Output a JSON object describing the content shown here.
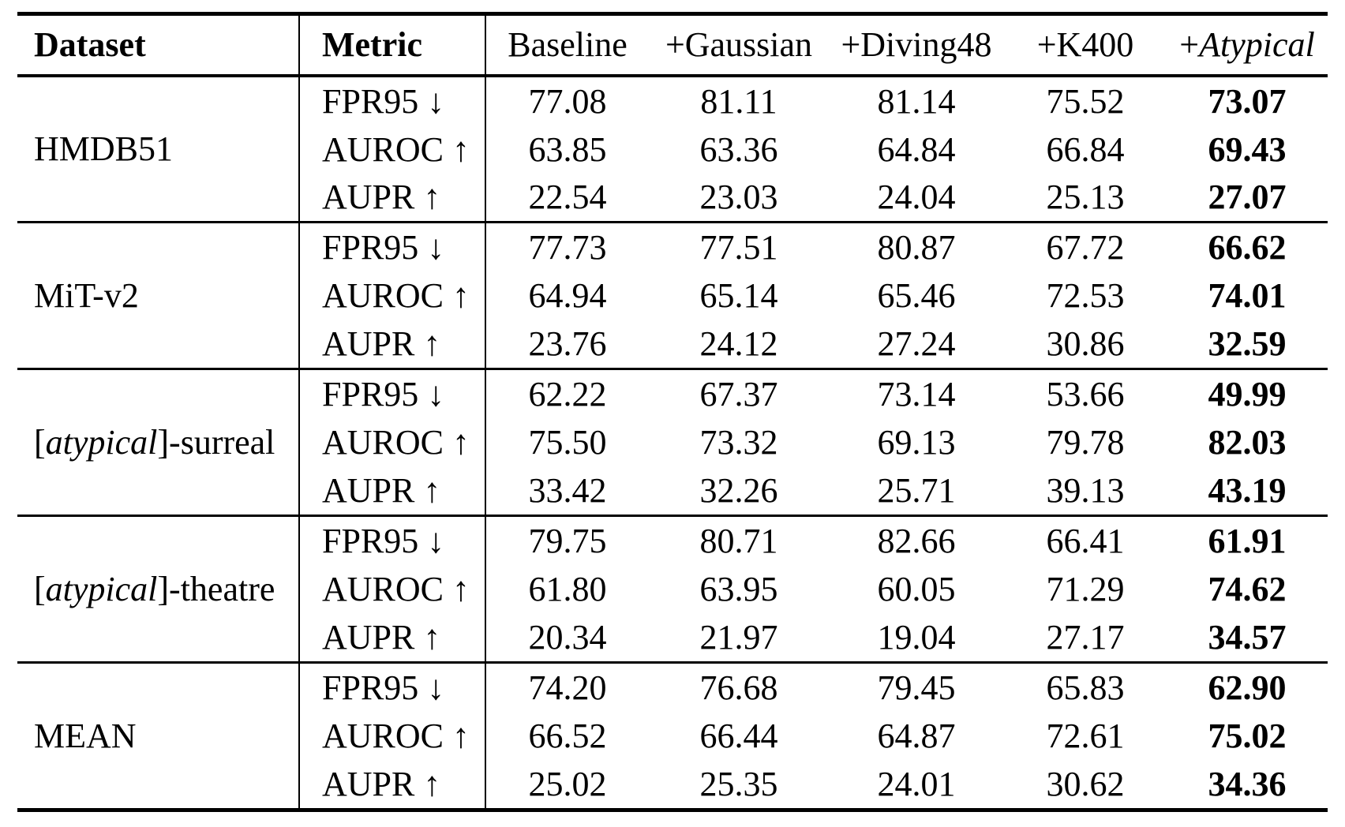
{
  "table": {
    "header": {
      "dataset_label": "Dataset",
      "metric_label": "Metric",
      "methods": [
        {
          "pre": "Baseline",
          "italic": "",
          "post": ""
        },
        {
          "pre": "+Gaussian",
          "italic": "",
          "post": ""
        },
        {
          "pre": "+Diving48",
          "italic": "",
          "post": ""
        },
        {
          "pre": "+K400",
          "italic": "",
          "post": ""
        },
        {
          "pre": "+",
          "italic": "Atypical",
          "post": ""
        }
      ]
    },
    "groups": [
      {
        "dataset": {
          "pre": "HMDB51",
          "italic": "",
          "post": ""
        },
        "rows": [
          {
            "metric": "FPR95 ↓",
            "values": [
              "77.08",
              "81.11",
              "81.14",
              "75.52",
              "73.07"
            ]
          },
          {
            "metric": "AUROC ↑",
            "values": [
              "63.85",
              "63.36",
              "64.84",
              "66.84",
              "69.43"
            ]
          },
          {
            "metric": "AUPR ↑",
            "values": [
              "22.54",
              "23.03",
              "24.04",
              "25.13",
              "27.07"
            ]
          }
        ]
      },
      {
        "dataset": {
          "pre": "MiT-v2",
          "italic": "",
          "post": ""
        },
        "rows": [
          {
            "metric": "FPR95 ↓",
            "values": [
              "77.73",
              "77.51",
              "80.87",
              "67.72",
              "66.62"
            ]
          },
          {
            "metric": "AUROC ↑",
            "values": [
              "64.94",
              "65.14",
              "65.46",
              "72.53",
              "74.01"
            ]
          },
          {
            "metric": "AUPR ↑",
            "values": [
              "23.76",
              "24.12",
              "27.24",
              "30.86",
              "32.59"
            ]
          }
        ]
      },
      {
        "dataset": {
          "pre": "[",
          "italic": "atypical",
          "post": "]-surreal"
        },
        "rows": [
          {
            "metric": "FPR95 ↓",
            "values": [
              "62.22",
              "67.37",
              "73.14",
              "53.66",
              "49.99"
            ]
          },
          {
            "metric": "AUROC ↑",
            "values": [
              "75.50",
              "73.32",
              "69.13",
              "79.78",
              "82.03"
            ]
          },
          {
            "metric": "AUPR ↑",
            "values": [
              "33.42",
              "32.26",
              "25.71",
              "39.13",
              "43.19"
            ]
          }
        ]
      },
      {
        "dataset": {
          "pre": "[",
          "italic": "atypical",
          "post": "]-theatre"
        },
        "rows": [
          {
            "metric": "FPR95 ↓",
            "values": [
              "79.75",
              "80.71",
              "82.66",
              "66.41",
              "61.91"
            ]
          },
          {
            "metric": "AUROC ↑",
            "values": [
              "61.80",
              "63.95",
              "60.05",
              "71.29",
              "74.62"
            ]
          },
          {
            "metric": "AUPR ↑",
            "values": [
              "20.34",
              "21.97",
              "19.04",
              "27.17",
              "34.57"
            ]
          }
        ]
      },
      {
        "dataset": {
          "pre": "MEAN",
          "italic": "",
          "post": ""
        },
        "rows": [
          {
            "metric": "FPR95 ↓",
            "values": [
              "74.20",
              "76.68",
              "79.45",
              "65.83",
              "62.90"
            ]
          },
          {
            "metric": "AUROC ↑",
            "values": [
              "66.52",
              "66.44",
              "64.87",
              "72.61",
              "75.02"
            ]
          },
          {
            "metric": "AUPR ↑",
            "values": [
              "25.02",
              "25.35",
              "24.01",
              "30.62",
              "34.36"
            ]
          }
        ]
      }
    ]
  },
  "chart_data": {
    "type": "table",
    "columns": [
      "Dataset",
      "Metric",
      "Baseline",
      "+Gaussian",
      "+Diving48",
      "+K400",
      "+Atypical"
    ],
    "rows": [
      [
        "HMDB51",
        "FPR95 ↓",
        77.08,
        81.11,
        81.14,
        75.52,
        73.07
      ],
      [
        "HMDB51",
        "AUROC ↑",
        63.85,
        63.36,
        64.84,
        66.84,
        69.43
      ],
      [
        "HMDB51",
        "AUPR ↑",
        22.54,
        23.03,
        24.04,
        25.13,
        27.07
      ],
      [
        "MiT-v2",
        "FPR95 ↓",
        77.73,
        77.51,
        80.87,
        67.72,
        66.62
      ],
      [
        "MiT-v2",
        "AUROC ↑",
        64.94,
        65.14,
        65.46,
        72.53,
        74.01
      ],
      [
        "MiT-v2",
        "AUPR ↑",
        23.76,
        24.12,
        27.24,
        30.86,
        32.59
      ],
      [
        "[atypical]-surreal",
        "FPR95 ↓",
        62.22,
        67.37,
        73.14,
        53.66,
        49.99
      ],
      [
        "[atypical]-surreal",
        "AUROC ↑",
        75.5,
        73.32,
        69.13,
        79.78,
        82.03
      ],
      [
        "[atypical]-surreal",
        "AUPR ↑",
        33.42,
        32.26,
        25.71,
        39.13,
        43.19
      ],
      [
        "[atypical]-theatre",
        "FPR95 ↓",
        79.75,
        80.71,
        82.66,
        66.41,
        61.91
      ],
      [
        "[atypical]-theatre",
        "AUROC ↑",
        61.8,
        63.95,
        60.05,
        71.29,
        74.62
      ],
      [
        "[atypical]-theatre",
        "AUPR ↑",
        20.34,
        21.97,
        19.04,
        27.17,
        34.57
      ],
      [
        "MEAN",
        "FPR95 ↓",
        74.2,
        76.68,
        79.45,
        65.83,
        62.9
      ],
      [
        "MEAN",
        "AUROC ↑",
        66.52,
        66.44,
        64.87,
        72.61,
        75.02
      ],
      [
        "MEAN",
        "AUPR ↑",
        25.02,
        25.35,
        24.01,
        30.62,
        34.36
      ]
    ],
    "notes": "Last column (+Atypical) values are bold (best results); FPR95 lower is better, AUROC/AUPR higher is better"
  }
}
